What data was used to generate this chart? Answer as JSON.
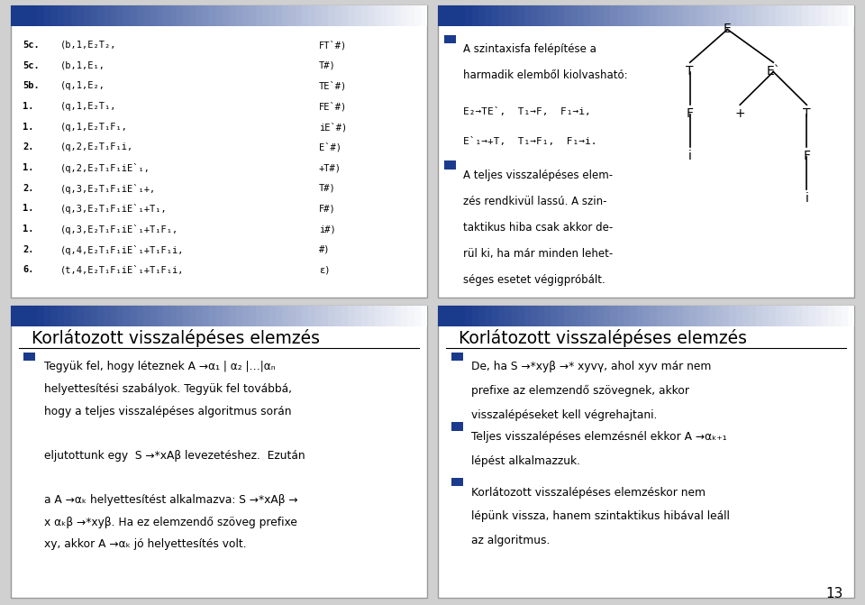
{
  "bg_color": "#d0d0d0",
  "panel_bg": "#ffffff",
  "bullet_color": "#1a3a8c",
  "page_number": "13",
  "panel1": {
    "lines": [
      [
        "5c.",
        "(b,1,E₂T₂,",
        "FT`#)"
      ],
      [
        "5c.",
        "(b,1,E₁,",
        "T#)"
      ],
      [
        "5b.",
        "(q,1,E₂,",
        "TE`#)"
      ],
      [
        "1.",
        "(q,1,E₂T₁,",
        "FE`#)"
      ],
      [
        "1.",
        "(q,1,E₂T₁F₁,",
        "iE`#)"
      ],
      [
        "2.",
        "(q,2,E₂T₁F₁i,",
        "E`#)"
      ],
      [
        "1.",
        "(q,2,E₂T₁F₁iE`₁,",
        "+T#)"
      ],
      [
        "2.",
        "(q,3,E₂T₁F₁iE`₁+,",
        "T#)"
      ],
      [
        "1.",
        "(q,3,E₂T₁F₁iE`₁+T₁,",
        "F#)"
      ],
      [
        "1.",
        "(q,3,E₂T₁F₁iE`₁+T₁F₁,",
        "i#)"
      ],
      [
        "2.",
        "(q,4,E₂T₁F₁iE`₁+T₁F₁i,",
        "#)"
      ],
      [
        "6.",
        "(t,4,E₂T₁F₁iE`₁+T₁F₁i,",
        "ε)"
      ]
    ]
  },
  "panel2": {
    "bullet1_line1": "A szintaxisfa felépítése a",
    "bullet1_line2": "harmadik elemből kiolvasható:",
    "formula1": "E₂→TE`,  T₁→F,  F₁→i,",
    "formula2": "E`₁→+T,  T₁→F₁,  F₁→i.",
    "bullet2_lines": [
      "A teljes visszalépéses elem-",
      "zés rendkivül lassú. A szin-",
      "taktikus hiba csak akkor de-",
      "rül ki, ha már minden lehet-",
      "séges esetet végigpróbált."
    ]
  },
  "panel3": {
    "title": "Korlátozott visszalépéses elemzés",
    "bullet_lines": [
      "Tegyük fel, hogy léteznek A →α₁ | α₂ |…|αₙ",
      "helyettesítési szabályok. Tegyük fel továbbá,",
      "hogy a teljes visszalépéses algoritmus során",
      "",
      "eljutottunk egy  S →*xAβ levezetéshez.  Ezután",
      "",
      "a A →αₖ helyettesítést alkalmazva: S →*xAβ →",
      "x αₖβ →*xyβ. Ha ez elemzendő szöveg prefixe",
      "xy, akkor A →αₖ jó helyettesítés volt."
    ]
  },
  "panel4": {
    "title": "Korlátozott visszalépéses elemzés",
    "bullet1_lines": [
      "De, ha S →*xyβ →* xyvγ, ahol xyv már nem",
      "prefixe az elemzendő szövegnek, akkor",
      "visszalépéseket kell végrehajtani."
    ],
    "bullet2_lines": [
      "Teljes visszalépéses elemzésnél ekkor A →αₖ₊₁",
      "lépést alkalmazzuk."
    ],
    "bullet3_lines": [
      "Korlátozott visszalépéses elemzéskor nem",
      "lépünk vissza, hanem szintaktikus hibával leáll",
      "az algoritmus."
    ]
  }
}
